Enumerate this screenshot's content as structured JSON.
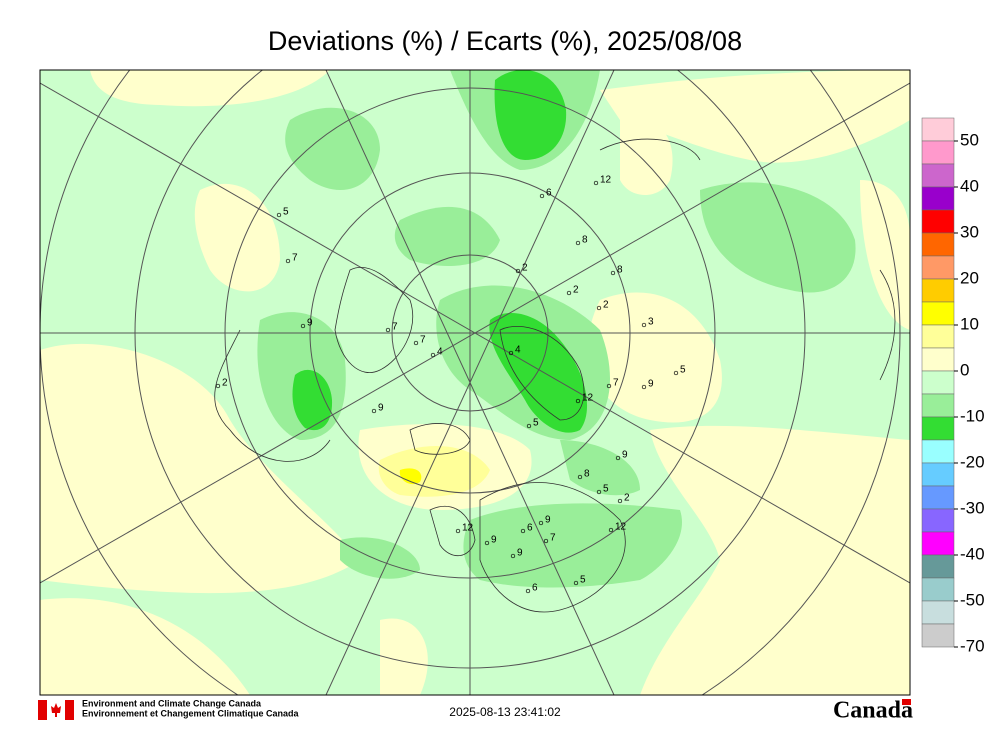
{
  "header": {
    "title": "Deviations (%) / Ecarts (%), 2025/08/08"
  },
  "legend": {
    "colors": [
      "#ffccd9",
      "#ff99cc",
      "#cc66cc",
      "#9900cc",
      "#ff0000",
      "#ff6600",
      "#ff9966",
      "#ffcc00",
      "#ffff00",
      "#ffff99",
      "#ffffcc",
      "#ccffcc",
      "#99ee99",
      "#33dd33",
      "#99ffff",
      "#66ccff",
      "#6699ff",
      "#8866ff",
      "#ff00ff",
      "#669999",
      "#99cccc",
      "#c8dede",
      "#cccccc"
    ],
    "ticks": [
      "50",
      "40",
      "30",
      "20",
      "10",
      "0",
      "-10",
      "-20",
      "-30",
      "-40",
      "-50",
      "-70"
    ]
  },
  "stations": [
    "5",
    "7",
    "9",
    "2",
    "9",
    "7",
    "7",
    "4",
    "2",
    "4",
    "8",
    "2",
    "8",
    "6",
    "2",
    "3",
    "9",
    "5",
    "7",
    "12",
    "5",
    "9",
    "8",
    "5",
    "2",
    "6",
    "9",
    "7",
    "9",
    "12",
    "9",
    "5",
    "6",
    "12",
    "12"
  ],
  "footer": {
    "agency_en": "Environment and Climate Change Canada",
    "agency_fr": "Environnement et Changement Climatique Canada",
    "timestamp": "2025-08-13 23:41:02",
    "wordmark": "Canada"
  }
}
